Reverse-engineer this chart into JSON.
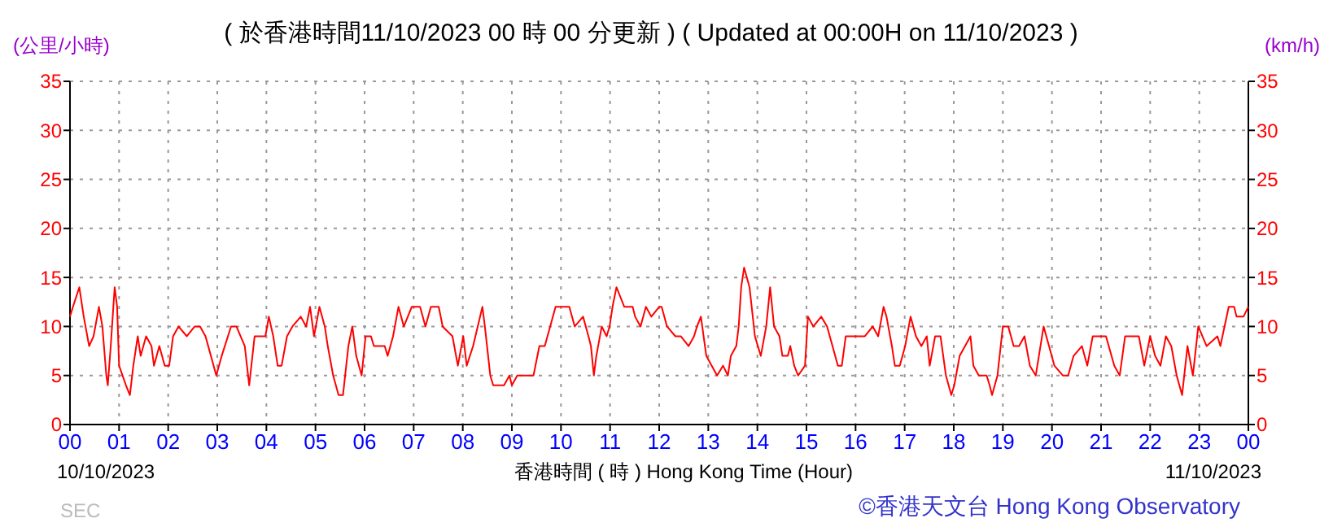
{
  "chart_data": {
    "type": "line",
    "title": "( 於香港時間11/10/2023 00 時 00 分更新 ) ( Updated at 00:00H on 11/10/2023 )",
    "xlabel": "香港時間 ( 時 ) Hong Kong Time (Hour)",
    "ylabel": "(公里/小時)",
    "y2label": "(km/h)",
    "annotations": [
      "10/10/2023",
      "11/10/2023",
      "SEC",
      "©香港天文台 Hong Kong Observatory"
    ],
    "xlim": [
      0,
      24
    ],
    "xticks": [
      {
        "value": 0,
        "label": "00"
      },
      {
        "value": 1,
        "label": "01"
      },
      {
        "value": 2,
        "label": "02"
      },
      {
        "value": 3,
        "label": "03"
      },
      {
        "value": 4,
        "label": "04"
      },
      {
        "value": 5,
        "label": "05"
      },
      {
        "value": 6,
        "label": "06"
      },
      {
        "value": 7,
        "label": "07"
      },
      {
        "value": 8,
        "label": "08"
      },
      {
        "value": 9,
        "label": "09"
      },
      {
        "value": 10,
        "label": "10"
      },
      {
        "value": 11,
        "label": "11"
      },
      {
        "value": 12,
        "label": "12"
      },
      {
        "value": 13,
        "label": "13"
      },
      {
        "value": 14,
        "label": "14"
      },
      {
        "value": 15,
        "label": "15"
      },
      {
        "value": 16,
        "label": "16"
      },
      {
        "value": 17,
        "label": "17"
      },
      {
        "value": 18,
        "label": "18"
      },
      {
        "value": 19,
        "label": "19"
      },
      {
        "value": 20,
        "label": "20"
      },
      {
        "value": 21,
        "label": "21"
      },
      {
        "value": 22,
        "label": "22"
      },
      {
        "value": 23,
        "label": "23"
      },
      {
        "value": 24,
        "label": "00"
      }
    ],
    "ylim": [
      0,
      35
    ],
    "yticks": [
      0,
      5,
      10,
      15,
      20,
      25,
      30,
      35
    ],
    "y2lim": [
      0,
      35
    ],
    "y2ticks": [
      0,
      5,
      10,
      15,
      20,
      25,
      30,
      35
    ],
    "grid": true,
    "marker": "none",
    "line_style": "solid",
    "series": [
      {
        "color": "#ff0000",
        "x": [
          0,
          0.06,
          0.19,
          0.28,
          0.39,
          0.48,
          0.59,
          0.66,
          0.74,
          0.77,
          0.83,
          0.91,
          0.96,
          1.0,
          1.14,
          1.22,
          1.29,
          1.38,
          1.44,
          1.55,
          1.66,
          1.71,
          1.82,
          1.93,
          2.02,
          2.1,
          2.21,
          2.38,
          2.54,
          2.65,
          2.76,
          2.87,
          2.98,
          3.09,
          3.28,
          3.39,
          3.56,
          3.65,
          3.76,
          3.98,
          4.05,
          4.14,
          4.23,
          4.31,
          4.42,
          4.53,
          4.7,
          4.81,
          4.89,
          4.97,
          5.08,
          5.19,
          5.25,
          5.36,
          5.47,
          5.56,
          5.67,
          5.75,
          5.83,
          5.94,
          6.02,
          6.13,
          6.19,
          6.41,
          6.47,
          6.58,
          6.69,
          6.8,
          6.96,
          7.13,
          7.24,
          7.35,
          7.51,
          7.59,
          7.79,
          7.9,
          8.01,
          8.08,
          8.21,
          8.4,
          8.45,
          8.56,
          8.62,
          8.84,
          8.95,
          9.0,
          9.11,
          9.22,
          9.44,
          9.56,
          9.67,
          9.78,
          9.89,
          10.17,
          10.28,
          10.45,
          10.56,
          10.61,
          10.67,
          10.72,
          10.83,
          10.93,
          10.99,
          11.05,
          11.13,
          11.29,
          11.46,
          11.51,
          11.62,
          11.73,
          11.84,
          12.0,
          12.05,
          12.16,
          12.33,
          12.44,
          12.6,
          12.71,
          12.77,
          12.85,
          12.96,
          13.07,
          13.18,
          13.3,
          13.4,
          13.46,
          13.57,
          13.62,
          13.67,
          13.73,
          13.84,
          13.95,
          14.07,
          14.18,
          14.26,
          14.34,
          14.45,
          14.51,
          14.62,
          14.67,
          14.75,
          14.83,
          14.97,
          15.03,
          15.14,
          15.3,
          15.42,
          15.53,
          15.64,
          15.72,
          15.8,
          15.9,
          16.08,
          16.19,
          16.35,
          16.46,
          16.57,
          16.63,
          16.74,
          16.8,
          16.9,
          17.01,
          17.12,
          17.23,
          17.34,
          17.45,
          17.51,
          17.62,
          17.73,
          17.84,
          17.95,
          18.01,
          18.12,
          18.23,
          18.34,
          18.4,
          18.51,
          18.67,
          18.73,
          18.78,
          18.89,
          19.0,
          19.11,
          19.22,
          19.33,
          19.44,
          19.55,
          19.67,
          19.83,
          19.94,
          20.05,
          20.22,
          20.33,
          20.44,
          20.61,
          20.72,
          20.83,
          21.1,
          21.27,
          21.38,
          21.49,
          21.77,
          21.88,
          22.0,
          22.1,
          22.21,
          22.32,
          22.43,
          22.54,
          22.65,
          22.76,
          22.87,
          22.98,
          23.15,
          23.37,
          23.43,
          23.6,
          23.71,
          23.76,
          23.9,
          24.0
        ],
        "values": [
          11,
          12,
          14,
          11,
          8,
          9,
          12,
          10,
          5,
          4,
          8,
          14,
          12,
          6,
          4,
          3,
          6,
          9,
          7,
          9,
          8,
          6,
          8,
          6,
          6,
          9,
          10,
          9,
          10,
          10,
          9,
          7,
          5,
          7,
          10,
          10,
          8,
          4,
          9,
          9,
          11,
          9,
          6,
          6,
          9,
          10,
          11,
          10,
          12,
          9,
          12,
          10,
          8,
          5,
          3,
          3,
          8,
          10,
          7,
          5,
          9,
          9,
          8,
          8,
          7,
          9,
          12,
          10,
          12,
          12,
          10,
          12,
          12,
          10,
          9,
          6,
          9,
          6,
          8,
          12,
          10,
          5,
          4,
          4,
          5,
          4,
          5,
          5,
          5,
          8,
          8,
          10,
          12,
          12,
          10,
          11,
          9,
          8,
          5,
          7,
          10,
          9,
          10,
          12,
          14,
          12,
          12,
          11,
          10,
          12,
          11,
          12,
          12,
          10,
          9,
          9,
          8,
          9,
          10,
          11,
          7,
          6,
          5,
          6,
          5,
          7,
          8,
          10,
          14,
          16,
          14,
          9,
          7,
          10,
          14,
          10,
          9,
          7,
          7,
          8,
          6,
          5,
          6,
          11,
          10,
          11,
          10,
          8,
          6,
          6,
          9,
          9,
          9,
          9,
          10,
          9,
          12,
          11,
          8,
          6,
          6,
          8,
          11,
          9,
          8,
          9,
          6,
          9,
          9,
          5,
          3,
          4,
          7,
          8,
          9,
          6,
          5,
          5,
          4,
          3,
          5,
          10,
          10,
          8,
          8,
          9,
          6,
          5,
          10,
          8,
          6,
          5,
          5,
          7,
          8,
          6,
          9,
          9,
          6,
          5,
          9,
          9,
          6,
          9,
          7,
          6,
          9,
          8,
          5,
          3,
          8,
          5,
          10,
          8,
          9,
          8,
          12,
          12,
          11,
          11,
          12
        ]
      }
    ]
  }
}
